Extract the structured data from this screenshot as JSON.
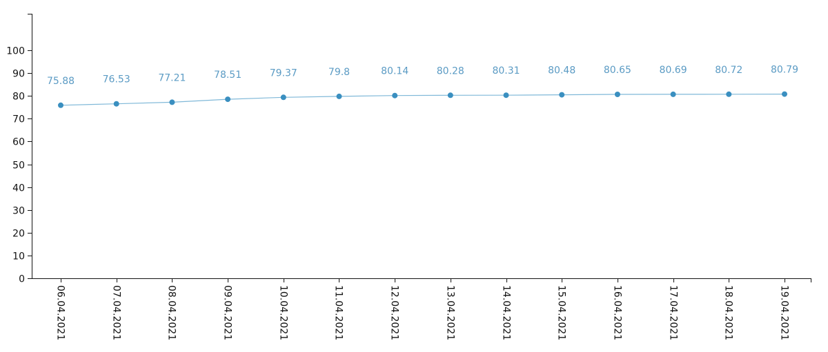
{
  "chart_data": {
    "type": "line",
    "title": "",
    "xlabel": "",
    "ylabel": "",
    "ylim": [
      0,
      100
    ],
    "yticks": [
      0,
      10,
      20,
      30,
      40,
      50,
      60,
      70,
      80,
      90,
      100
    ],
    "categories": [
      "06.04.2021",
      "07.04.2021",
      "08.04.2021",
      "09.04.2021",
      "10.04.2021",
      "11.04.2021",
      "12.04.2021",
      "13.04.2021",
      "14.04.2021",
      "15.04.2021",
      "16.04.2021",
      "17.04.2021",
      "18.04.2021",
      "19.04.2021"
    ],
    "series": [
      {
        "values": [
          75.88,
          76.53,
          77.21,
          78.51,
          79.37,
          79.8,
          80.14,
          80.28,
          80.31,
          80.48,
          80.65,
          80.69,
          80.72,
          80.79
        ],
        "labels": [
          "75.88",
          "76.53",
          "77.21",
          "78.51",
          "79.37",
          "79.8",
          "80.14",
          "80.28",
          "80.31",
          "80.48",
          "80.65",
          "80.69",
          "80.72",
          "80.79"
        ],
        "line_color": "#7fb8d8",
        "point_color": "#3a8fc0",
        "label_color": "#5b9bc4"
      }
    ],
    "grid": false,
    "legend": "none"
  }
}
